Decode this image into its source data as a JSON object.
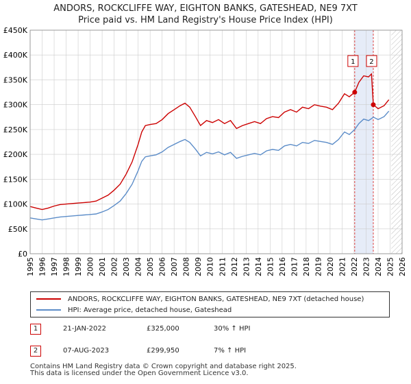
{
  "title": "ANDORS, ROCKCLIFFE WAY, EIGHTON BANKS, GATESHEAD, NE9 7XT",
  "subtitle": "Price paid vs. HM Land Registry's House Price Index (HPI)",
  "colors": {
    "property": "#cc0000",
    "hpi": "#5b8cc8",
    "highlight": "#e6ecf8",
    "grid": "#cccccc",
    "marker_line": "#dd4444"
  },
  "chart_data": {
    "type": "line",
    "title": "ANDORS, ROCKCLIFFE WAY, EIGHTON BANKS, GATESHEAD, NE9 7XT",
    "subtitle": "Price paid vs. HM Land Registry's House Price Index (HPI)",
    "xlim": [
      1995,
      2026
    ],
    "ylim": [
      0,
      450000
    ],
    "grid": true,
    "x_ticks": [
      "1995",
      "1996",
      "1997",
      "1998",
      "1999",
      "2000",
      "2001",
      "2002",
      "2003",
      "2004",
      "2005",
      "2006",
      "2007",
      "2008",
      "2009",
      "2010",
      "2011",
      "2012",
      "2013",
      "2014",
      "2015",
      "2016",
      "2017",
      "2018",
      "2019",
      "2020",
      "2021",
      "2022",
      "2023",
      "2024",
      "2025",
      "2026"
    ],
    "y_ticks": [
      {
        "value": 0,
        "label": "£0"
      },
      {
        "value": 50000,
        "label": "£50K"
      },
      {
        "value": 100000,
        "label": "£100K"
      },
      {
        "value": 150000,
        "label": "£150K"
      },
      {
        "value": 200000,
        "label": "£200K"
      },
      {
        "value": 250000,
        "label": "£250K"
      },
      {
        "value": 300000,
        "label": "£300K"
      },
      {
        "value": 350000,
        "label": "£350K"
      },
      {
        "value": 400000,
        "label": "£400K"
      },
      {
        "value": 450000,
        "label": "£450K"
      }
    ],
    "highlight_range": [
      2022.05,
      2023.6
    ],
    "projection_from": 2025.1,
    "series": [
      {
        "name": "ANDORS, ROCKCLIFFE WAY, EIGHTON BANKS, GATESHEAD, NE9 7XT (detached house)",
        "key": "property",
        "points": [
          [
            1995.0,
            95000
          ],
          [
            1995.5,
            92000
          ],
          [
            1996.0,
            89000
          ],
          [
            1996.5,
            92000
          ],
          [
            1997.0,
            96000
          ],
          [
            1997.5,
            99000
          ],
          [
            1998.0,
            100000
          ],
          [
            1998.5,
            101000
          ],
          [
            1999.0,
            102000
          ],
          [
            1999.5,
            103000
          ],
          [
            2000.0,
            104000
          ],
          [
            2000.5,
            106000
          ],
          [
            2001.0,
            112000
          ],
          [
            2001.5,
            118000
          ],
          [
            2002.0,
            128000
          ],
          [
            2002.5,
            140000
          ],
          [
            2003.0,
            160000
          ],
          [
            2003.5,
            185000
          ],
          [
            2004.0,
            220000
          ],
          [
            2004.3,
            245000
          ],
          [
            2004.6,
            258000
          ],
          [
            2005.0,
            260000
          ],
          [
            2005.5,
            262000
          ],
          [
            2006.0,
            270000
          ],
          [
            2006.5,
            282000
          ],
          [
            2007.0,
            290000
          ],
          [
            2007.5,
            298000
          ],
          [
            2007.9,
            303000
          ],
          [
            2008.3,
            295000
          ],
          [
            2008.8,
            275000
          ],
          [
            2009.2,
            258000
          ],
          [
            2009.7,
            268000
          ],
          [
            2010.2,
            264000
          ],
          [
            2010.7,
            270000
          ],
          [
            2011.2,
            262000
          ],
          [
            2011.7,
            268000
          ],
          [
            2012.2,
            252000
          ],
          [
            2012.7,
            258000
          ],
          [
            2013.2,
            262000
          ],
          [
            2013.7,
            266000
          ],
          [
            2014.2,
            262000
          ],
          [
            2014.7,
            272000
          ],
          [
            2015.2,
            276000
          ],
          [
            2015.7,
            274000
          ],
          [
            2016.2,
            285000
          ],
          [
            2016.7,
            290000
          ],
          [
            2017.2,
            285000
          ],
          [
            2017.7,
            295000
          ],
          [
            2018.2,
            292000
          ],
          [
            2018.7,
            300000
          ],
          [
            2019.2,
            297000
          ],
          [
            2019.7,
            295000
          ],
          [
            2020.2,
            290000
          ],
          [
            2020.7,
            303000
          ],
          [
            2021.2,
            322000
          ],
          [
            2021.6,
            316000
          ],
          [
            2022.05,
            325000
          ],
          [
            2022.4,
            345000
          ],
          [
            2022.8,
            358000
          ],
          [
            2023.2,
            356000
          ],
          [
            2023.45,
            362000
          ],
          [
            2023.6,
            299950
          ],
          [
            2024.0,
            292000
          ],
          [
            2024.5,
            298000
          ],
          [
            2024.9,
            310000
          ]
        ]
      },
      {
        "name": "HPI: Average price, detached house, Gateshead",
        "key": "hpi",
        "points": [
          [
            1995.0,
            72000
          ],
          [
            1995.5,
            70000
          ],
          [
            1996.0,
            68000
          ],
          [
            1996.5,
            70000
          ],
          [
            1997.0,
            72000
          ],
          [
            1997.5,
            74000
          ],
          [
            1998.0,
            75000
          ],
          [
            1998.5,
            76000
          ],
          [
            1999.0,
            77000
          ],
          [
            1999.5,
            78000
          ],
          [
            2000.0,
            79000
          ],
          [
            2000.5,
            80000
          ],
          [
            2001.0,
            84000
          ],
          [
            2001.5,
            89000
          ],
          [
            2002.0,
            97000
          ],
          [
            2002.5,
            106000
          ],
          [
            2003.0,
            121000
          ],
          [
            2003.5,
            140000
          ],
          [
            2004.0,
            167000
          ],
          [
            2004.3,
            186000
          ],
          [
            2004.6,
            195000
          ],
          [
            2005.0,
            197000
          ],
          [
            2005.5,
            199000
          ],
          [
            2006.0,
            205000
          ],
          [
            2006.5,
            214000
          ],
          [
            2007.0,
            220000
          ],
          [
            2007.5,
            226000
          ],
          [
            2007.9,
            230000
          ],
          [
            2008.3,
            224000
          ],
          [
            2008.8,
            210000
          ],
          [
            2009.2,
            197000
          ],
          [
            2009.7,
            204000
          ],
          [
            2010.2,
            201000
          ],
          [
            2010.7,
            205000
          ],
          [
            2011.2,
            199000
          ],
          [
            2011.7,
            204000
          ],
          [
            2012.2,
            192000
          ],
          [
            2012.7,
            196000
          ],
          [
            2013.2,
            199000
          ],
          [
            2013.7,
            202000
          ],
          [
            2014.2,
            199000
          ],
          [
            2014.7,
            207000
          ],
          [
            2015.2,
            210000
          ],
          [
            2015.7,
            208000
          ],
          [
            2016.2,
            217000
          ],
          [
            2016.7,
            220000
          ],
          [
            2017.2,
            217000
          ],
          [
            2017.7,
            224000
          ],
          [
            2018.2,
            222000
          ],
          [
            2018.7,
            228000
          ],
          [
            2019.2,
            226000
          ],
          [
            2019.7,
            224000
          ],
          [
            2020.2,
            220000
          ],
          [
            2020.7,
            230000
          ],
          [
            2021.2,
            245000
          ],
          [
            2021.6,
            240000
          ],
          [
            2022.05,
            250000
          ],
          [
            2022.4,
            262000
          ],
          [
            2022.8,
            271000
          ],
          [
            2023.2,
            268000
          ],
          [
            2023.45,
            272000
          ],
          [
            2023.6,
            275000
          ],
          [
            2024.0,
            270000
          ],
          [
            2024.5,
            276000
          ],
          [
            2024.9,
            287000
          ]
        ]
      }
    ],
    "sales": [
      {
        "label": "1",
        "x": 2022.05,
        "y": 325000
      },
      {
        "label": "2",
        "x": 2023.6,
        "y": 299950
      }
    ]
  },
  "legend": {
    "property_label": "ANDORS, ROCKCLIFFE WAY, EIGHTON BANKS, GATESHEAD, NE9 7XT (detached house)",
    "hpi_label": "HPI: Average price, detached house, Gateshead"
  },
  "sales_table": [
    {
      "num": "1",
      "date": "21-JAN-2022",
      "price": "£325,000",
      "hpi_change": "30% ↑ HPI"
    },
    {
      "num": "2",
      "date": "07-AUG-2023",
      "price": "£299,950",
      "hpi_change": "7% ↑ HPI"
    }
  ],
  "footer": {
    "line1": "Contains HM Land Registry data © Crown copyright and database right 2025.",
    "line2": "This data is licensed under the Open Government Licence v3.0."
  }
}
